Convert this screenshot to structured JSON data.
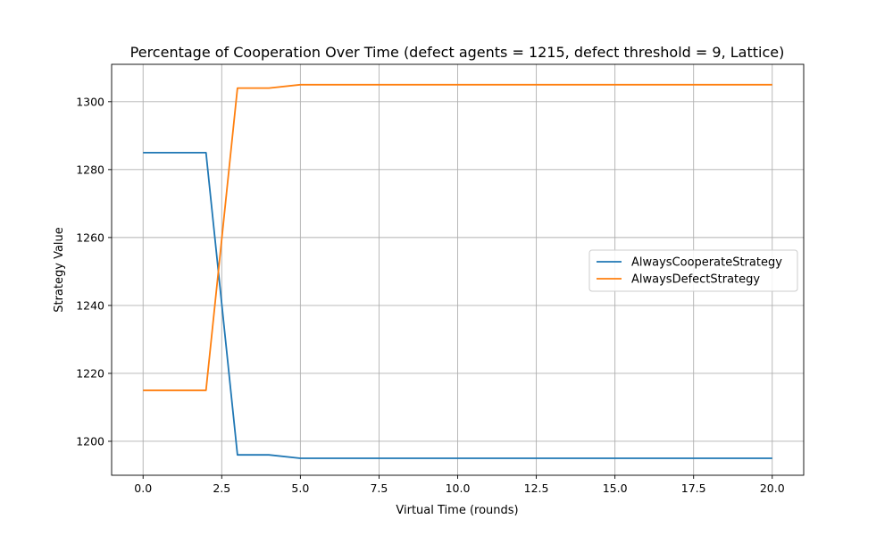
{
  "chart_data": {
    "type": "line",
    "title": "Percentage of Cooperation Over Time (defect agents = 1215, defect threshold = 9, Lattice)",
    "xlabel": "Virtual Time (rounds)",
    "ylabel": "Strategy Value",
    "xlim": [
      -1,
      21
    ],
    "ylim": [
      1190,
      1311
    ],
    "x_ticks": [
      0.0,
      2.5,
      5.0,
      7.5,
      10.0,
      12.5,
      15.0,
      17.5,
      20.0
    ],
    "x_tick_labels": [
      "0.0",
      "2.5",
      "5.0",
      "7.5",
      "10.0",
      "12.5",
      "15.0",
      "17.5",
      "20.0"
    ],
    "y_ticks": [
      1200,
      1220,
      1240,
      1260,
      1280,
      1300
    ],
    "y_tick_labels": [
      "1200",
      "1220",
      "1240",
      "1260",
      "1280",
      "1300"
    ],
    "grid": true,
    "legend_position": "center-right",
    "x": [
      0,
      1,
      2,
      3,
      4,
      5,
      6,
      7,
      8,
      9,
      10,
      11,
      12,
      13,
      14,
      15,
      16,
      17,
      18,
      19,
      20
    ],
    "series": [
      {
        "name": "AlwaysCooperateStrategy",
        "color": "#1f77b4",
        "values": [
          1285,
          1285,
          1285,
          1196,
          1196,
          1195,
          1195,
          1195,
          1195,
          1195,
          1195,
          1195,
          1195,
          1195,
          1195,
          1195,
          1195,
          1195,
          1195,
          1195,
          1195
        ]
      },
      {
        "name": "AlwaysDefectStrategy",
        "color": "#ff7f0e",
        "values": [
          1215,
          1215,
          1215,
          1304,
          1304,
          1305,
          1305,
          1305,
          1305,
          1305,
          1305,
          1305,
          1305,
          1305,
          1305,
          1305,
          1305,
          1305,
          1305,
          1305,
          1305
        ]
      }
    ]
  }
}
